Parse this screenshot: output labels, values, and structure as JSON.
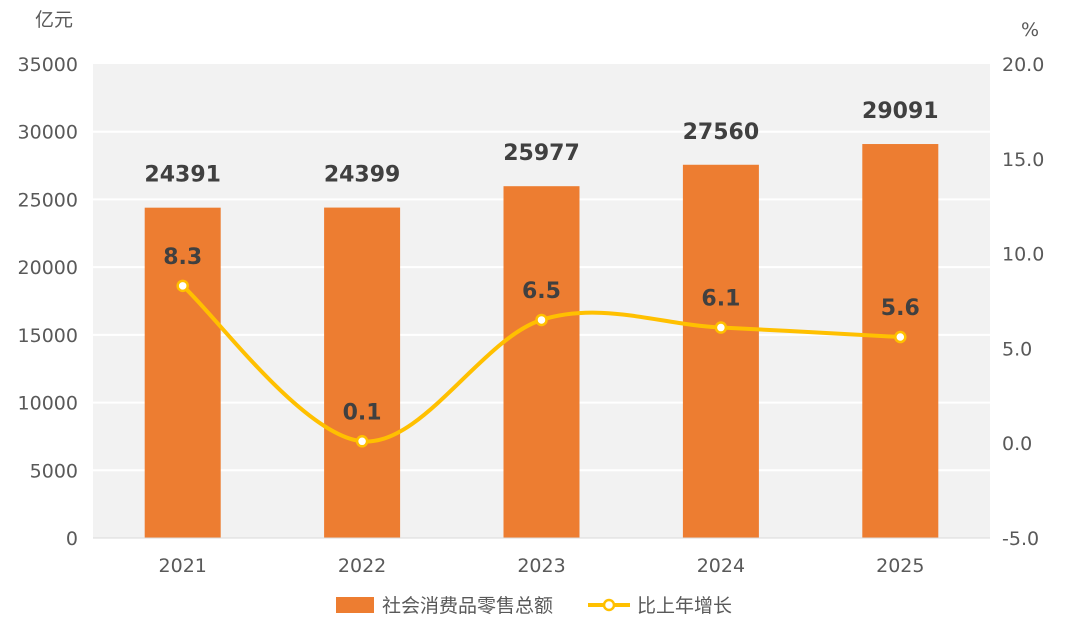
{
  "chart_data": {
    "type": "bar+line",
    "categories": [
      "2021",
      "2022",
      "2023",
      "2024",
      "2025"
    ],
    "left_axis": {
      "unit": "亿元",
      "range": [
        0,
        35000
      ],
      "ticks": [
        0,
        5000,
        10000,
        15000,
        20000,
        25000,
        30000,
        35000
      ]
    },
    "right_axis": {
      "unit": "%",
      "range": [
        -5.0,
        20.0
      ],
      "ticks": [
        "-5.0",
        "0.0",
        "5.0",
        "10.0",
        "15.0",
        "20.0"
      ]
    },
    "series": [
      {
        "name": "社会消费品零售总额",
        "type": "bar",
        "axis": "left",
        "color": "#ED7D31",
        "values": [
          24391,
          24399,
          25977,
          27560,
          29091
        ]
      },
      {
        "name": "比上年增长",
        "type": "line",
        "axis": "right",
        "color": "#FFC000",
        "smooth": true,
        "values": [
          8.3,
          0.1,
          6.5,
          6.1,
          5.6
        ],
        "labels": [
          "8.3",
          "0.1",
          "6.5",
          "6.1",
          "5.6"
        ]
      }
    ],
    "grid": true,
    "plot_background": "#F2F2F2",
    "legend_placement": "bottom"
  }
}
